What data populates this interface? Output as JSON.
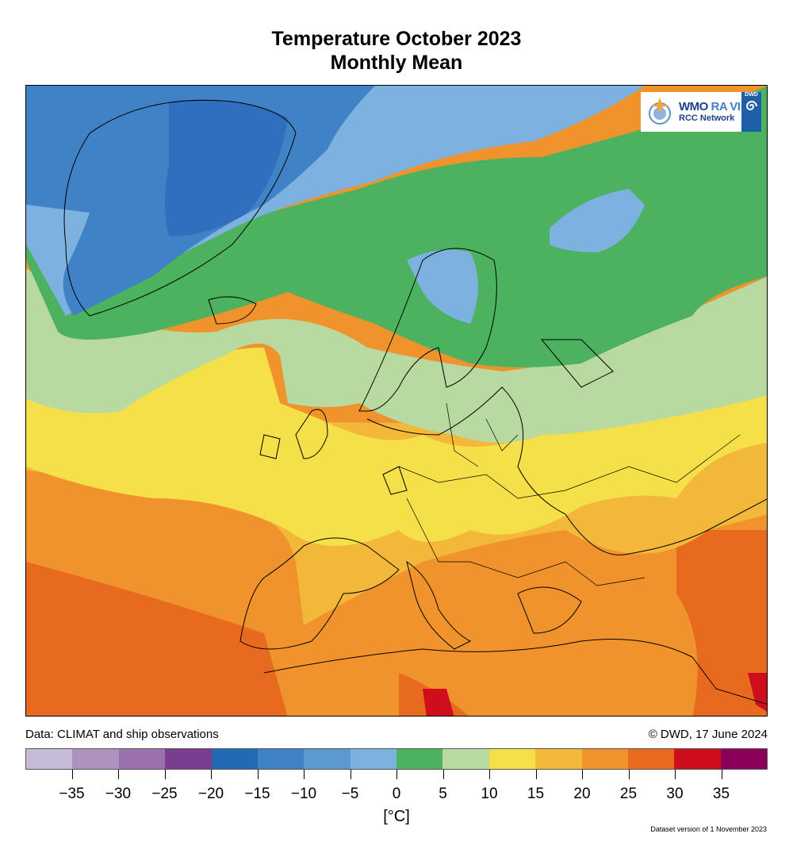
{
  "title": {
    "line1": "Temperature October 2023",
    "line2": "Monthly Mean"
  },
  "logo": {
    "org": "WMO",
    "region": "RA VI",
    "network": "RCC Network",
    "badge": "DWD"
  },
  "footer": {
    "source": "Data: CLIMAT and ship observations",
    "copyright": "© DWD, 17 June 2024",
    "version": "Dataset version of 1 November 2023"
  },
  "legend": {
    "unit": "[°C]",
    "colors": [
      "#c6bcda",
      "#ae93bf",
      "#9a70ad",
      "#7b3d90",
      "#226ab3",
      "#3f82c6",
      "#5d99d1",
      "#7db1e0",
      "#4cb260",
      "#b8d9a0",
      "#f5e04a",
      "#f3b73a",
      "#f0932c",
      "#e86a1e",
      "#cf0e1d",
      "#8a005a"
    ],
    "ticks": [
      "−35",
      "−30",
      "−25",
      "−20",
      "−15",
      "−10",
      "−5",
      "0",
      "5",
      "10",
      "15",
      "20",
      "25",
      "30",
      "35"
    ]
  }
}
